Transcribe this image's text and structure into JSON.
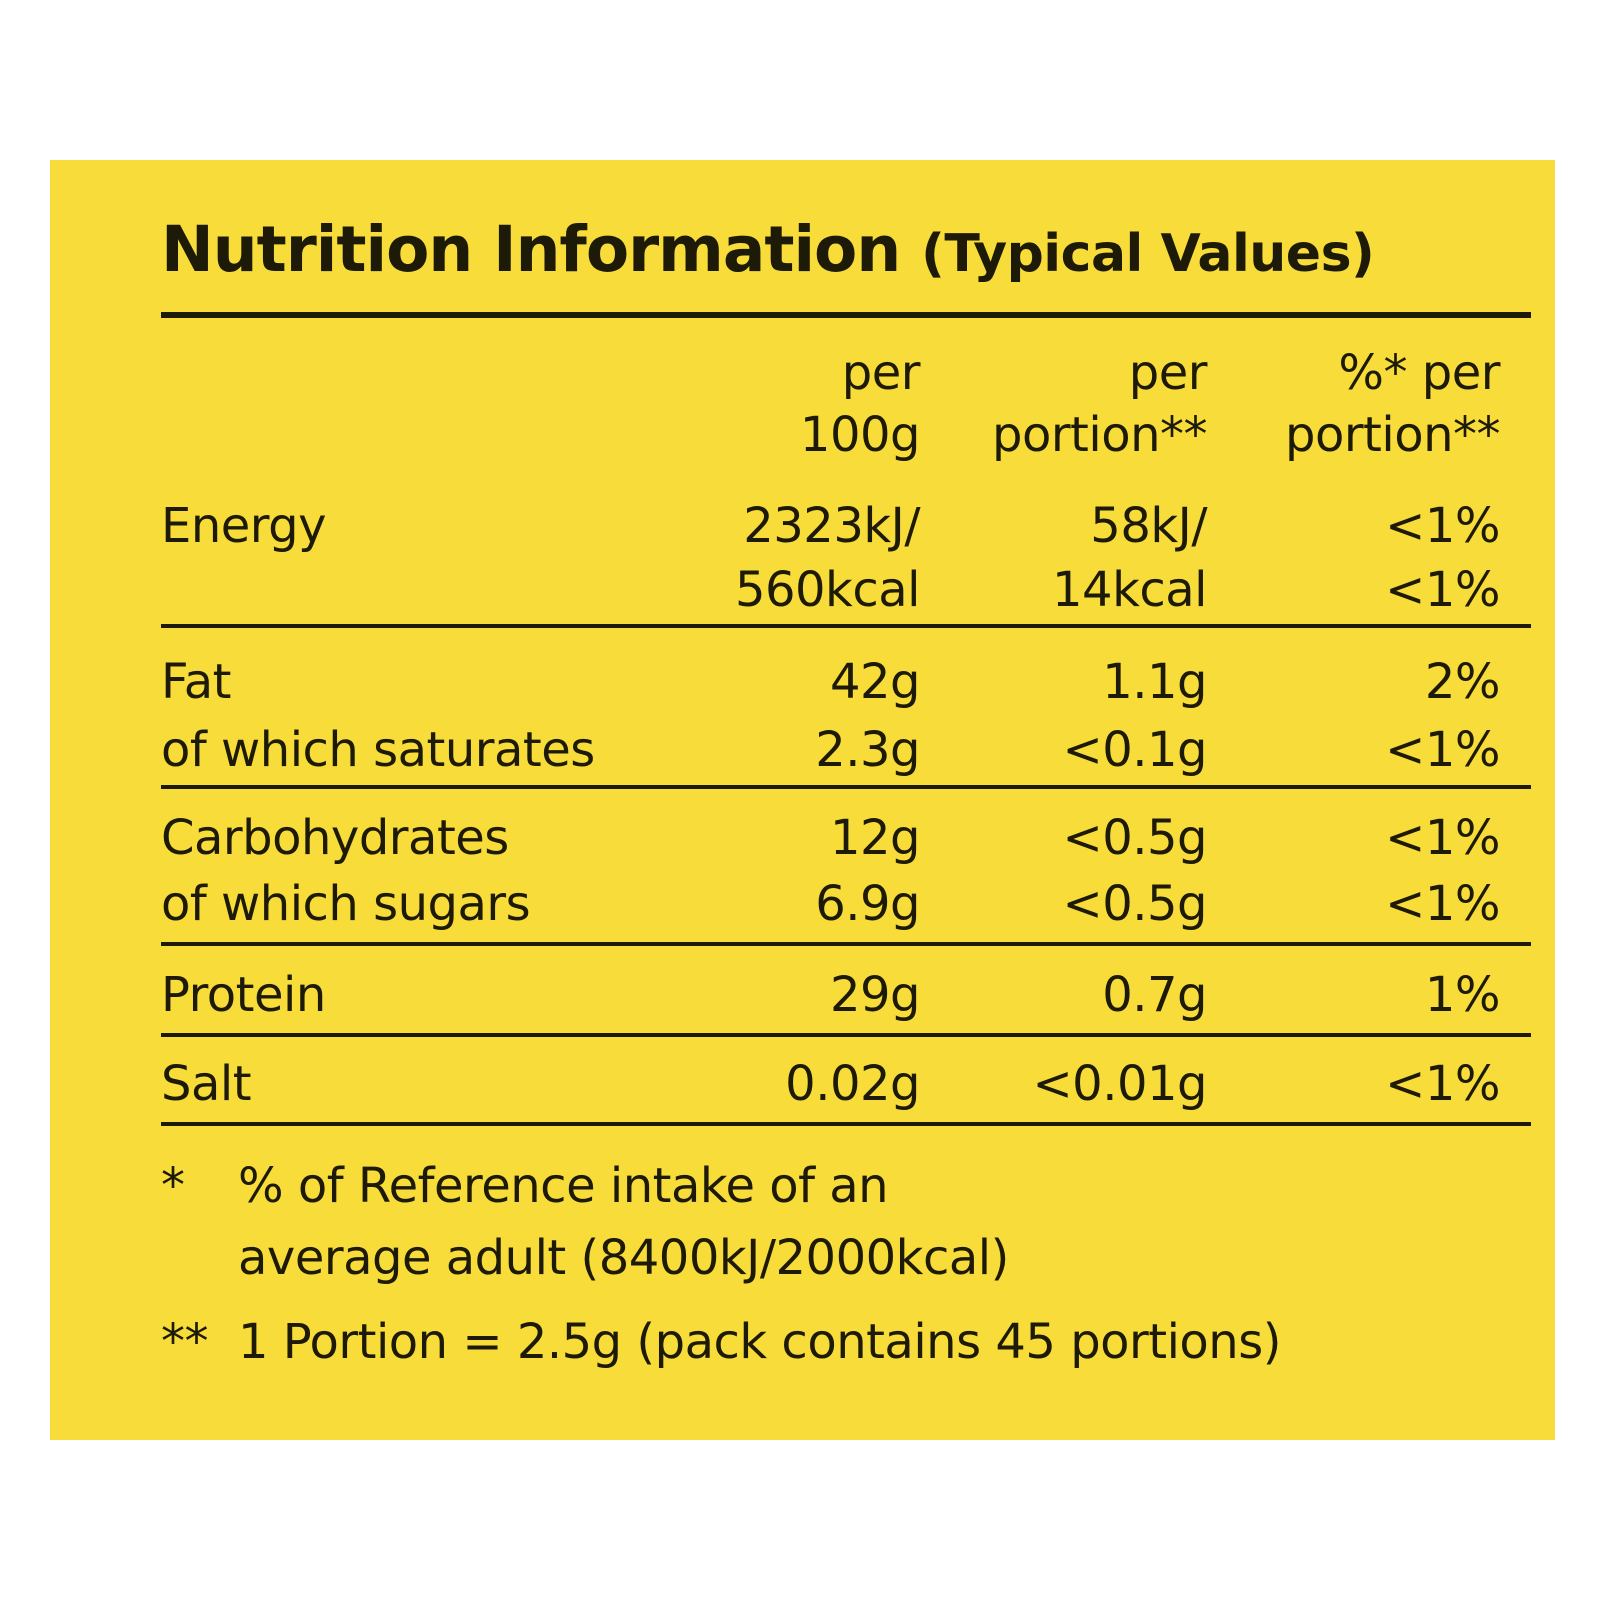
{
  "title": {
    "main": "Nutrition Information",
    "sub": "(Typical Values)"
  },
  "columns": {
    "per_100g": [
      "per",
      "100g"
    ],
    "per_portion": [
      "per",
      "portion**"
    ],
    "pct_per_portion": [
      "%* per",
      "portion**"
    ]
  },
  "rows": [
    {
      "name": "Energy",
      "per_100g": [
        "2323kJ/",
        "560kcal"
      ],
      "per_portion": [
        "58kJ/",
        "14kcal"
      ],
      "pct": [
        "<1%",
        "<1%"
      ]
    },
    {
      "name": "Fat",
      "per_100g": "42g",
      "per_portion": "1.1g",
      "pct": "2%"
    },
    {
      "name": "of which saturates",
      "per_100g": "2.3g",
      "per_portion": "<0.1g",
      "pct": "<1%"
    },
    {
      "name": "Carbohydrates",
      "per_100g": "12g",
      "per_portion": "<0.5g",
      "pct": "<1%"
    },
    {
      "name": "of which sugars",
      "per_100g": "6.9g",
      "per_portion": "<0.5g",
      "pct": "<1%"
    },
    {
      "name": "Protein",
      "per_100g": "29g",
      "per_portion": "0.7g",
      "pct": "1%"
    },
    {
      "name": "Salt",
      "per_100g": "0.02g",
      "per_portion": "<0.01g",
      "pct": "<1%"
    }
  ],
  "footnotes": {
    "ref_marker": "*",
    "ref_line1": "% of Reference intake of an",
    "ref_line2": "average adult (8400kJ/2000kcal)",
    "portion_marker": "**",
    "portion_text": "1 Portion = 2.5g (pack contains 45 portions)"
  },
  "colors": {
    "panel": "#f8dc3a",
    "ink": "#1e1a08"
  }
}
